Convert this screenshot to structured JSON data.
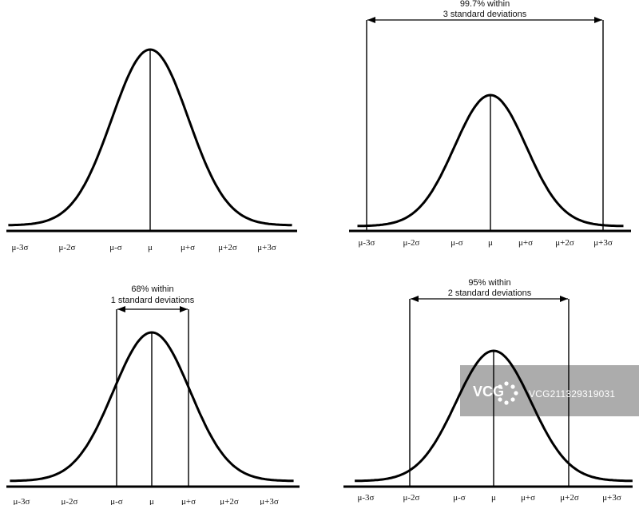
{
  "tick_labels": [
    "μ-3σ",
    "μ-2σ",
    "μ-σ",
    "μ",
    "μ+σ",
    "μ+2σ",
    "μ+3σ"
  ],
  "panels": [
    {
      "id": "p1",
      "caption": null
    },
    {
      "id": "p2",
      "caption": [
        "99.7% within",
        "3 standard deviations"
      ],
      "span_sigma": 3
    },
    {
      "id": "p3",
      "caption": [
        "68% within",
        "1 standard deviations"
      ],
      "span_sigma": 1
    },
    {
      "id": "p4",
      "caption": [
        "95% within",
        "2 standard deviations"
      ],
      "span_sigma": 2
    }
  ],
  "watermark": {
    "logo": "VCG",
    "text": "VCG211329319031"
  },
  "colors": {
    "line": "#000000",
    "watermark_bg": "#8c8c8c"
  }
}
